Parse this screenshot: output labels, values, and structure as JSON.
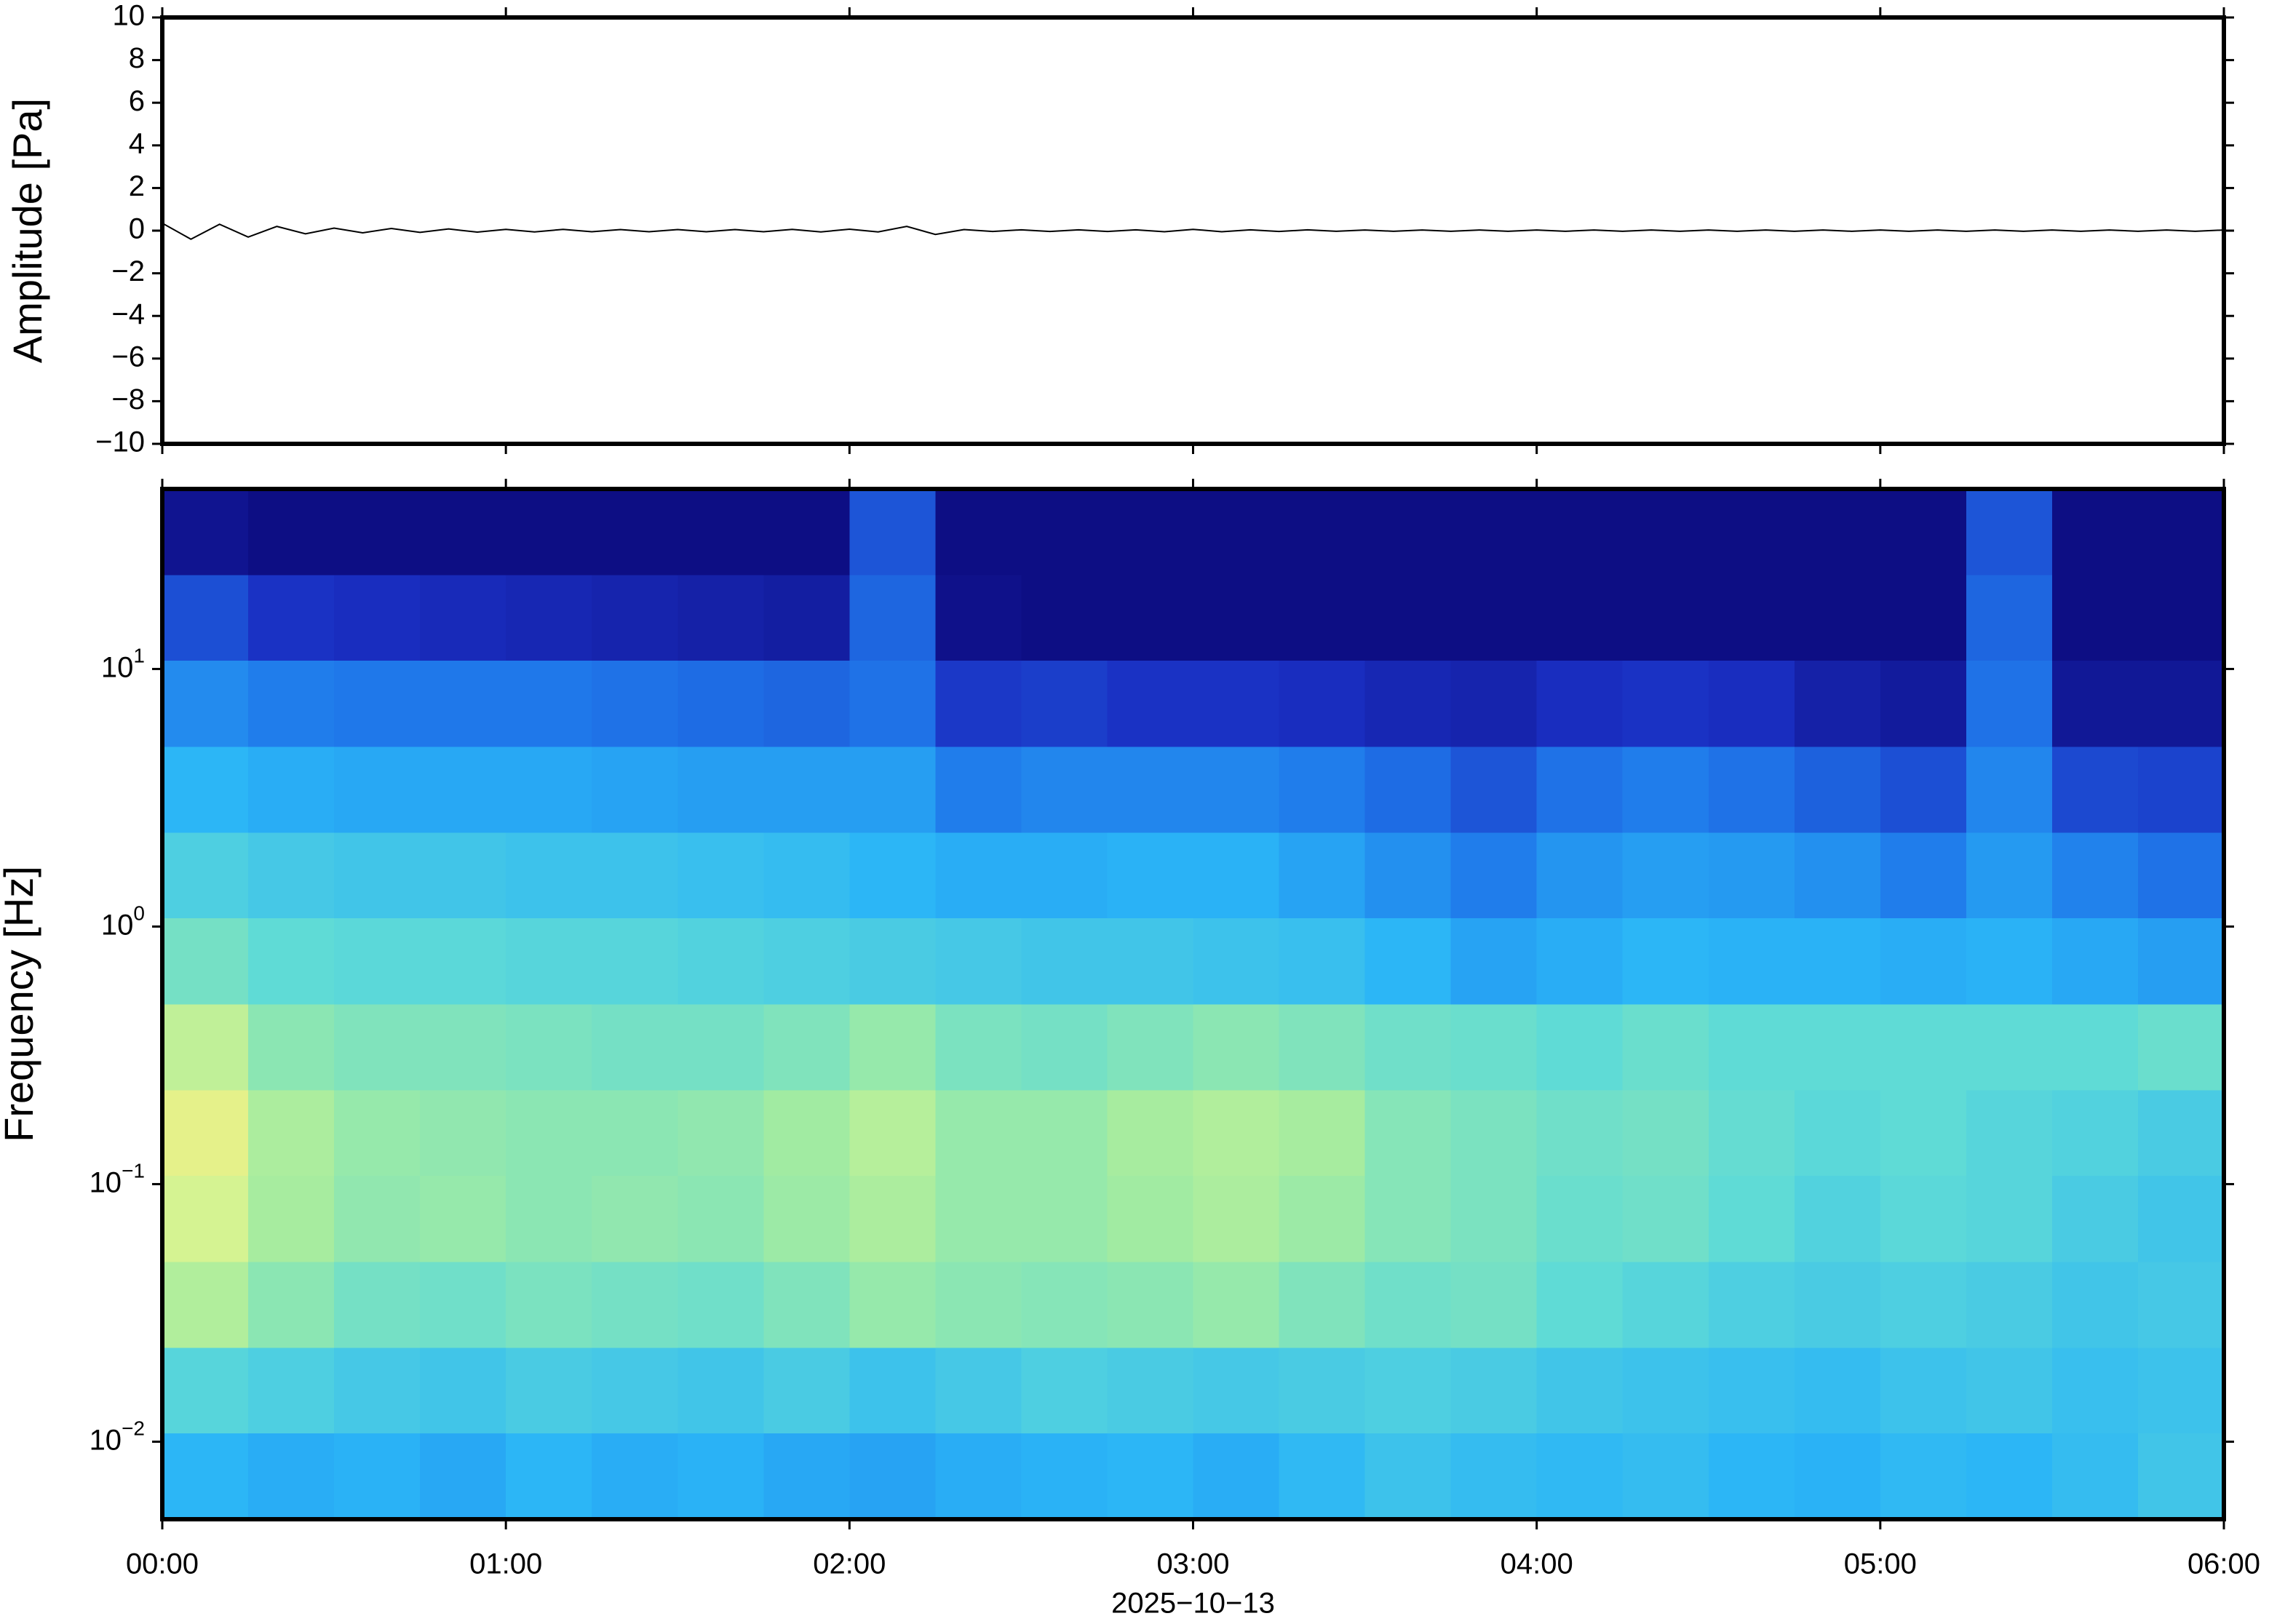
{
  "chart_data": [
    {
      "type": "line",
      "ylabel": "Amplitude [Pa]",
      "xlim": [
        0,
        360
      ],
      "xticks": [
        0,
        60,
        120,
        180,
        240,
        300,
        360
      ],
      "ylim": [
        -10,
        10
      ],
      "yticks": [
        {
          "value": -10,
          "label": "−10"
        },
        {
          "value": -8,
          "label": "−8"
        },
        {
          "value": -6,
          "label": "−6"
        },
        {
          "value": -4,
          "label": "−4"
        },
        {
          "value": -2,
          "label": "−2"
        },
        0,
        2,
        4,
        6,
        8,
        10
      ],
      "color": "#000000",
      "x": [
        0,
        5,
        10,
        15,
        20,
        25,
        30,
        35,
        40,
        45,
        50,
        55,
        60,
        65,
        70,
        75,
        80,
        85,
        90,
        95,
        100,
        105,
        110,
        115,
        120,
        125,
        130,
        135,
        140,
        145,
        150,
        155,
        160,
        165,
        170,
        175,
        180,
        185,
        190,
        195,
        200,
        205,
        210,
        215,
        220,
        225,
        230,
        235,
        240,
        245,
        250,
        255,
        260,
        265,
        270,
        275,
        280,
        285,
        290,
        295,
        300,
        305,
        310,
        315,
        320,
        325,
        330,
        335,
        340,
        345,
        350,
        355,
        360
      ],
      "values": [
        0.35,
        -0.4,
        0.3,
        -0.3,
        0.2,
        -0.15,
        0.12,
        -0.1,
        0.1,
        -0.08,
        0.08,
        -0.07,
        0.06,
        -0.06,
        0.06,
        -0.05,
        0.05,
        -0.05,
        0.05,
        -0.05,
        0.05,
        -0.05,
        0.06,
        -0.06,
        0.07,
        -0.06,
        0.2,
        -0.18,
        0.05,
        -0.04,
        0.04,
        -0.04,
        0.04,
        -0.04,
        0.04,
        -0.05,
        0.06,
        -0.05,
        0.04,
        -0.04,
        0.04,
        -0.03,
        0.03,
        -0.03,
        0.03,
        -0.03,
        0.03,
        -0.03,
        0.03,
        -0.03,
        0.03,
        -0.03,
        0.03,
        -0.03,
        0.03,
        -0.03,
        0.03,
        -0.03,
        0.03,
        -0.03,
        0.03,
        -0.03,
        0.03,
        -0.03,
        0.03,
        -0.03,
        0.03,
        -0.03,
        0.03,
        -0.03,
        0.03,
        -0.03,
        0.03
      ]
    },
    {
      "type": "heatmap",
      "ylabel": "Frequency [Hz]",
      "xlabel": "2025−10−13",
      "xlim": [
        0,
        360
      ],
      "xticks": [
        {
          "value": 0,
          "label": "00:00"
        },
        {
          "value": 60,
          "label": "01:00"
        },
        {
          "value": 120,
          "label": "02:00"
        },
        {
          "value": 180,
          "label": "03:00"
        },
        {
          "value": 240,
          "label": "04:00"
        },
        {
          "value": 300,
          "label": "05:00"
        },
        {
          "value": 360,
          "label": "06:00"
        }
      ],
      "ylim": [
        0.005,
        50
      ],
      "log_y": true,
      "yticks": [
        {
          "value": 0.01,
          "label": "10",
          "exponent": "−2"
        },
        {
          "value": 0.1,
          "label": "10",
          "exponent": "−1"
        },
        {
          "value": 1,
          "label": "10",
          "exponent": "0"
        },
        {
          "value": 10,
          "label": "10",
          "exponent": "1"
        }
      ],
      "x_edges": [
        0,
        15,
        30,
        45,
        60,
        75,
        90,
        105,
        120,
        135,
        150,
        165,
        180,
        195,
        210,
        225,
        240,
        255,
        270,
        285,
        300,
        315,
        330,
        345,
        360
      ],
      "y_edges": [
        0.005,
        0.0108,
        0.0232,
        0.05,
        0.108,
        0.232,
        0.5,
        1.08,
        2.32,
        5,
        10.8,
        23.2,
        50
      ],
      "zlim": [
        0,
        10
      ],
      "colormap": [
        "#0b0878",
        "#1a2fc2",
        "#1f78ea",
        "#2ab4f7",
        "#5fdbd6",
        "#a4eca0",
        "#e4f58e",
        "#f6c862",
        "#ee7c48"
      ],
      "z": [
        [
          3.8,
          3.6,
          3.7,
          3.5,
          3.8,
          3.6,
          3.7,
          3.5,
          3.4,
          3.6,
          3.7,
          3.8,
          3.6,
          3.9,
          4.2,
          4.0,
          3.9,
          4.0,
          3.8,
          3.7,
          3.9,
          3.8,
          4.0,
          4.3
        ],
        [
          4.8,
          4.6,
          4.4,
          4.3,
          4.5,
          4.4,
          4.3,
          4.5,
          4.2,
          4.4,
          4.6,
          4.5,
          4.4,
          4.5,
          4.6,
          4.5,
          4.3,
          4.2,
          4.1,
          4.0,
          4.2,
          4.3,
          4.1,
          4.2
        ],
        [
          6.5,
          5.8,
          5.4,
          5.3,
          5.5,
          5.4,
          5.3,
          5.6,
          6.0,
          5.8,
          5.7,
          5.8,
          6.0,
          5.6,
          5.3,
          5.4,
          5.0,
          4.8,
          4.6,
          4.5,
          4.6,
          4.5,
          4.3,
          4.4
        ],
        [
          7.2,
          6.3,
          5.9,
          6.0,
          5.8,
          5.9,
          5.8,
          6.1,
          6.4,
          6.0,
          6.0,
          6.2,
          6.4,
          6.1,
          5.7,
          5.5,
          5.2,
          5.3,
          5.0,
          4.7,
          4.9,
          4.8,
          4.5,
          4.3
        ],
        [
          7.6,
          6.4,
          6.0,
          5.9,
          5.8,
          5.8,
          5.9,
          6.2,
          6.6,
          6.0,
          6.0,
          6.3,
          6.5,
          6.3,
          5.7,
          5.5,
          5.3,
          5.4,
          5.1,
          4.9,
          5.0,
          4.8,
          4.7,
          4.5
        ],
        [
          6.8,
          5.8,
          5.6,
          5.6,
          5.5,
          5.4,
          5.4,
          5.6,
          6.0,
          5.5,
          5.4,
          5.6,
          5.8,
          5.6,
          5.3,
          5.2,
          5.0,
          5.2,
          5.0,
          5.0,
          5.0,
          5.0,
          5.0,
          5.2
        ],
        [
          5.4,
          5.0,
          4.9,
          4.9,
          4.8,
          4.8,
          4.7,
          4.6,
          4.5,
          4.4,
          4.3,
          4.3,
          4.2,
          4.1,
          3.8,
          3.4,
          3.6,
          3.8,
          3.7,
          3.7,
          3.6,
          3.7,
          3.5,
          3.3
        ],
        [
          4.6,
          4.4,
          4.3,
          4.3,
          4.2,
          4.2,
          4.1,
          4.0,
          3.8,
          3.6,
          3.6,
          3.7,
          3.7,
          3.4,
          3.0,
          2.6,
          3.1,
          3.3,
          3.2,
          3.0,
          2.6,
          3.2,
          2.7,
          2.4
        ],
        [
          3.8,
          3.6,
          3.5,
          3.5,
          3.5,
          3.4,
          3.3,
          3.3,
          3.3,
          2.6,
          2.8,
          2.8,
          2.8,
          2.6,
          2.3,
          1.9,
          2.4,
          2.6,
          2.4,
          2.1,
          1.8,
          2.8,
          1.7,
          1.6
        ],
        [
          2.9,
          2.6,
          2.5,
          2.5,
          2.5,
          2.4,
          2.3,
          2.2,
          2.4,
          1.4,
          1.5,
          1.3,
          1.3,
          1.2,
          1.0,
          0.9,
          1.2,
          1.3,
          1.2,
          0.8,
          0.6,
          2.4,
          0.5,
          0.5
        ],
        [
          1.8,
          1.3,
          1.2,
          1.1,
          1.0,
          0.9,
          0.8,
          0.7,
          2.2,
          0.3,
          0.2,
          0.2,
          0.2,
          0.2,
          0.2,
          0.2,
          0.2,
          0.2,
          0.2,
          0.2,
          0.2,
          2.2,
          0.2,
          0.2
        ],
        [
          0.4,
          0.2,
          0.2,
          0.2,
          0.2,
          0.2,
          0.2,
          0.2,
          1.9,
          0.2,
          0.2,
          0.2,
          0.2,
          0.2,
          0.2,
          0.2,
          0.2,
          0.2,
          0.2,
          0.2,
          0.2,
          1.9,
          0.2,
          0.2
        ]
      ]
    }
  ]
}
